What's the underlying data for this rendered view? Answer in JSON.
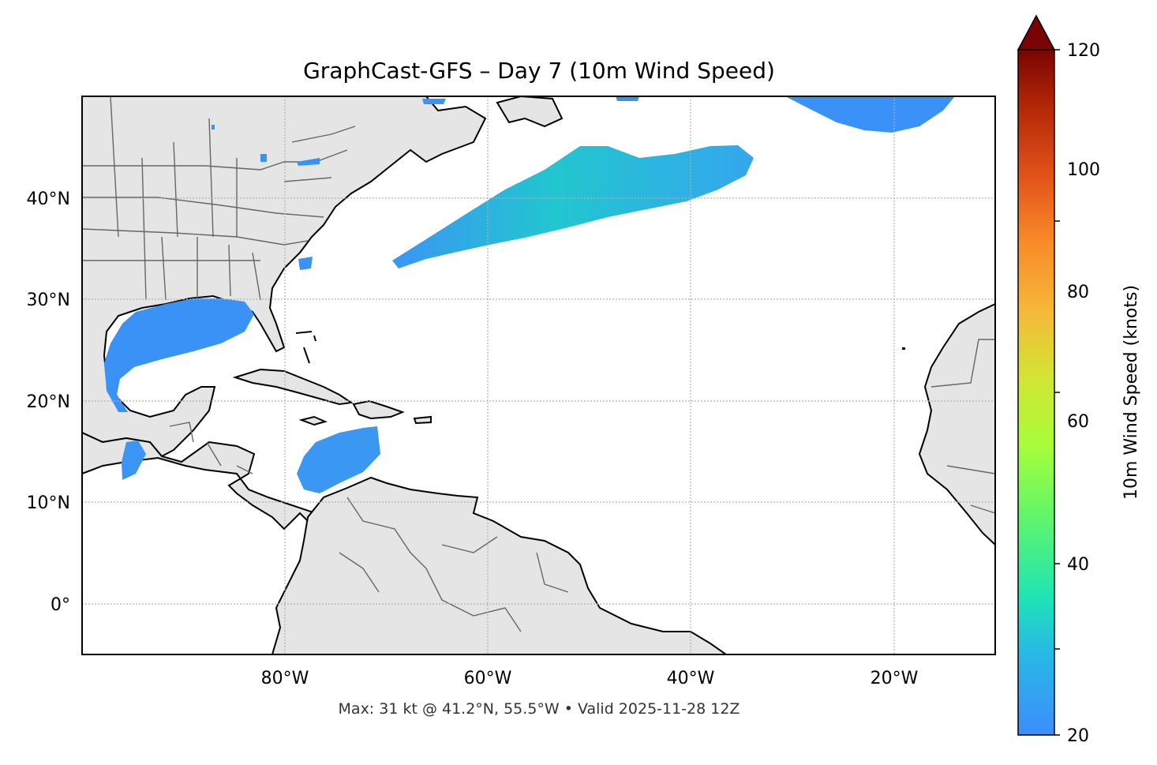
{
  "title": "GraphCast-GFS – Day 7 (10m Wind Speed)",
  "footer": "Max: 31 kt @ 41.2°N, 55.5°W • Valid 2025-11-28 12Z",
  "map": {
    "lon_range": [
      -100,
      -10
    ],
    "lat_range": [
      -5,
      50
    ],
    "gridlines": true,
    "lon_ticks": [
      "80°W",
      "60°W",
      "40°W",
      "20°W"
    ],
    "lat_ticks": [
      "0°",
      "10°N",
      "20°N",
      "30°N",
      "40°N"
    ],
    "land_color": "#e5e5e5",
    "coastline_color": "#000000",
    "border_color": "#666666"
  },
  "colorbar": {
    "label": "10m Wind Speed (knots)",
    "ticks": [
      "20",
      "40",
      "60",
      "80",
      "100",
      "120"
    ],
    "range": [
      20,
      120
    ],
    "extend": "max",
    "colormap": "turbo"
  },
  "wind_fields": [
    {
      "region": "mid-atlantic-jet",
      "approx_peak_kt": 31
    },
    {
      "region": "gulf-of-mexico",
      "approx_peak_kt": 24
    },
    {
      "region": "caribbean",
      "approx_peak_kt": 24
    },
    {
      "region": "east-pacific-tehuantepec",
      "approx_peak_kt": 24
    },
    {
      "region": "north-atlantic-east",
      "approx_peak_kt": 23
    }
  ]
}
